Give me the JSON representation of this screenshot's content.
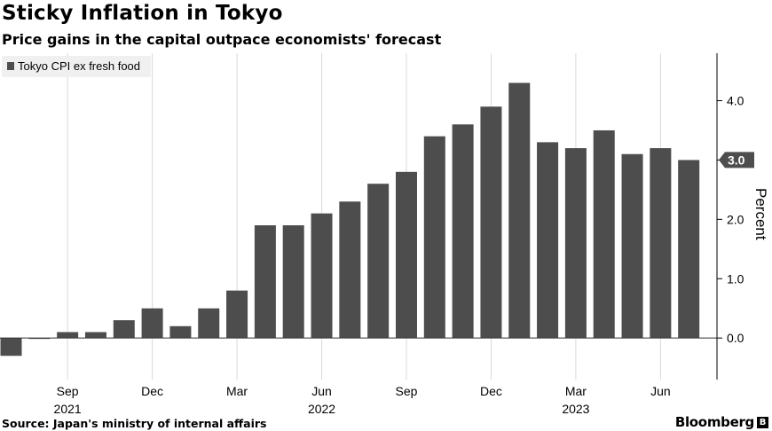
{
  "title": "Sticky Inflation in Tokyo",
  "subtitle": "Price gains in the capital outpace economists' forecast",
  "source": "Source: Japan's ministry of internal affairs",
  "brand": "Bloomberg",
  "colors": {
    "bar": "#4d4d4d",
    "grid": "#d9d9d9",
    "axis": "#000000",
    "legend_bg": "#f0f0f0"
  },
  "chart_data": {
    "type": "bar",
    "legend": [
      "Tokyo CPI ex fresh food"
    ],
    "legend_placement": "top-left",
    "ylabel": "Percent",
    "ylim": [
      -0.7,
      4.8
    ],
    "yticks": [
      0.0,
      1.0,
      2.0,
      3.0,
      4.0
    ],
    "ytick_labels": [
      "0.0",
      "1.0",
      "2.0",
      "3.0",
      "4.0"
    ],
    "y_axis_side": "right",
    "grid": "vertical",
    "categories": [
      "2021-07",
      "2021-08",
      "2021-09",
      "2021-10",
      "2021-11",
      "2021-12",
      "2022-01",
      "2022-02",
      "2022-03",
      "2022-04",
      "2022-05",
      "2022-06",
      "2022-07",
      "2022-08",
      "2022-09",
      "2022-10",
      "2022-11",
      "2022-12",
      "2023-01",
      "2023-02",
      "2023-03",
      "2023-04",
      "2023-05",
      "2023-06",
      "2023-07"
    ],
    "series": [
      {
        "name": "Tokyo CPI ex fresh food",
        "values": [
          -0.3,
          0.0,
          0.1,
          0.1,
          0.3,
          0.5,
          0.2,
          0.5,
          0.8,
          1.9,
          1.9,
          2.1,
          2.3,
          2.6,
          2.8,
          3.4,
          3.6,
          3.9,
          4.3,
          3.3,
          3.2,
          3.5,
          3.1,
          3.2,
          3.0
        ]
      }
    ],
    "xticks": [
      {
        "category": "2021-09",
        "label": "Sep"
      },
      {
        "category": "2021-12",
        "label": "Dec"
      },
      {
        "category": "2022-03",
        "label": "Mar"
      },
      {
        "category": "2022-06",
        "label": "Jun"
      },
      {
        "category": "2022-09",
        "label": "Sep"
      },
      {
        "category": "2022-12",
        "label": "Dec"
      },
      {
        "category": "2023-03",
        "label": "Mar"
      },
      {
        "category": "2023-06",
        "label": "Jun"
      }
    ],
    "year_labels": [
      {
        "category": "2021-09",
        "label": "2021"
      },
      {
        "category": "2022-06",
        "label": "2022"
      },
      {
        "category": "2023-03",
        "label": "2023"
      }
    ],
    "last_value_label": "3.0"
  }
}
